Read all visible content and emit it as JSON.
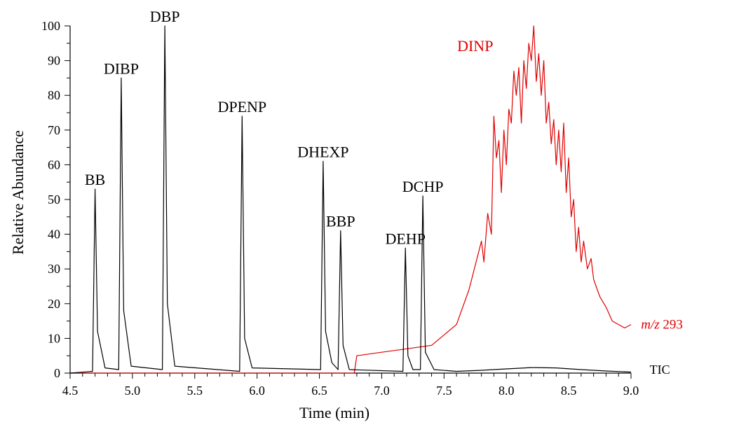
{
  "chart_data": {
    "type": "line",
    "xlabel": "Time (min)",
    "ylabel": "Relative Abundance",
    "xlim": [
      4.5,
      9.0
    ],
    "ylim": [
      0,
      100
    ],
    "xticks": [
      4.5,
      5.0,
      5.5,
      6.0,
      6.5,
      7.0,
      7.5,
      8.0,
      8.5,
      9.0
    ],
    "xtick_labels": [
      "4.5",
      "5.0",
      "5.5",
      "6.0",
      "6.5",
      "7.0",
      "7.5",
      "8.0",
      "8.5",
      "9.0"
    ],
    "yticks": [
      0,
      10,
      20,
      30,
      40,
      50,
      60,
      70,
      80,
      90,
      100
    ],
    "ytick_labels": [
      "0",
      "10",
      "20",
      "30",
      "40",
      "50",
      "60",
      "70",
      "80",
      "90",
      "100"
    ],
    "grid": false,
    "series": [
      {
        "name": "TIC",
        "color": "#000000",
        "peaks": [
          {
            "label": "BB",
            "x": 4.7,
            "y": 53
          },
          {
            "label": "DIBP",
            "x": 4.91,
            "y": 85
          },
          {
            "label": "DBP",
            "x": 5.26,
            "y": 100
          },
          {
            "label": "DPENP",
            "x": 5.88,
            "y": 74
          },
          {
            "label": "DHEXP",
            "x": 6.53,
            "y": 61
          },
          {
            "label": "BBP",
            "x": 6.67,
            "y": 41
          },
          {
            "label": "DEHP",
            "x": 7.19,
            "y": 36
          },
          {
            "label": "DCHP",
            "x": 7.33,
            "y": 51
          }
        ],
        "x": [
          4.5,
          4.68,
          4.7,
          4.72,
          4.78,
          4.89,
          4.91,
          4.93,
          4.99,
          5.24,
          5.26,
          5.28,
          5.34,
          5.86,
          5.88,
          5.9,
          5.96,
          6.51,
          6.53,
          6.55,
          6.6,
          6.65,
          6.67,
          6.69,
          6.74,
          7.17,
          7.19,
          7.21,
          7.25,
          7.31,
          7.33,
          7.35,
          7.42,
          7.6,
          7.8,
          8.0,
          8.2,
          8.4,
          8.6,
          8.8,
          9.0
        ],
        "y": [
          0,
          0.5,
          53,
          12,
          1.5,
          1,
          85,
          18,
          2,
          1,
          100,
          20,
          2,
          0.5,
          74,
          10,
          1.5,
          1,
          61,
          12,
          3,
          1,
          41,
          8,
          1,
          0.5,
          36,
          5,
          1,
          1,
          51,
          6,
          1,
          0.5,
          0.8,
          1.2,
          1.6,
          1.5,
          1.0,
          0.6,
          0.3
        ]
      },
      {
        "name": "m/z 293",
        "color": "#e00000",
        "x": [
          4.5,
          6.78,
          6.8,
          7.0,
          7.2,
          7.4,
          7.6,
          7.7,
          7.75,
          7.8,
          7.82,
          7.85,
          7.88,
          7.9,
          7.92,
          7.94,
          7.96,
          7.98,
          8.0,
          8.02,
          8.04,
          8.06,
          8.08,
          8.1,
          8.12,
          8.14,
          8.16,
          8.18,
          8.2,
          8.22,
          8.24,
          8.26,
          8.28,
          8.3,
          8.32,
          8.34,
          8.36,
          8.38,
          8.4,
          8.42,
          8.44,
          8.46,
          8.48,
          8.5,
          8.52,
          8.54,
          8.56,
          8.58,
          8.6,
          8.62,
          8.65,
          8.68,
          8.7,
          8.72,
          8.75,
          8.8,
          8.85,
          8.9,
          8.95,
          9.0
        ],
        "y": [
          0,
          0,
          5,
          6,
          7,
          8,
          14,
          24,
          31,
          38,
          32,
          46,
          40,
          74,
          62,
          67,
          52,
          70,
          60,
          76,
          72,
          87,
          80,
          88,
          72,
          90,
          82,
          95,
          90,
          100,
          84,
          92,
          80,
          90,
          72,
          78,
          66,
          73,
          60,
          70,
          58,
          72,
          52,
          62,
          45,
          50,
          35,
          42,
          32,
          38,
          30,
          33,
          27,
          25,
          22,
          19,
          15,
          14,
          13,
          14
        ]
      }
    ],
    "annotations": [
      {
        "text": "DINP",
        "x": 7.75,
        "y": 94,
        "color": "#e00000",
        "italic": false
      },
      {
        "text": "m/z",
        "x": 9.08,
        "y": 14,
        "color": "#e00000",
        "italic": true,
        "suffix": " 293"
      },
      {
        "text": "TIC",
        "x": 9.15,
        "y": 1,
        "color": "#000000",
        "italic": false
      }
    ]
  }
}
